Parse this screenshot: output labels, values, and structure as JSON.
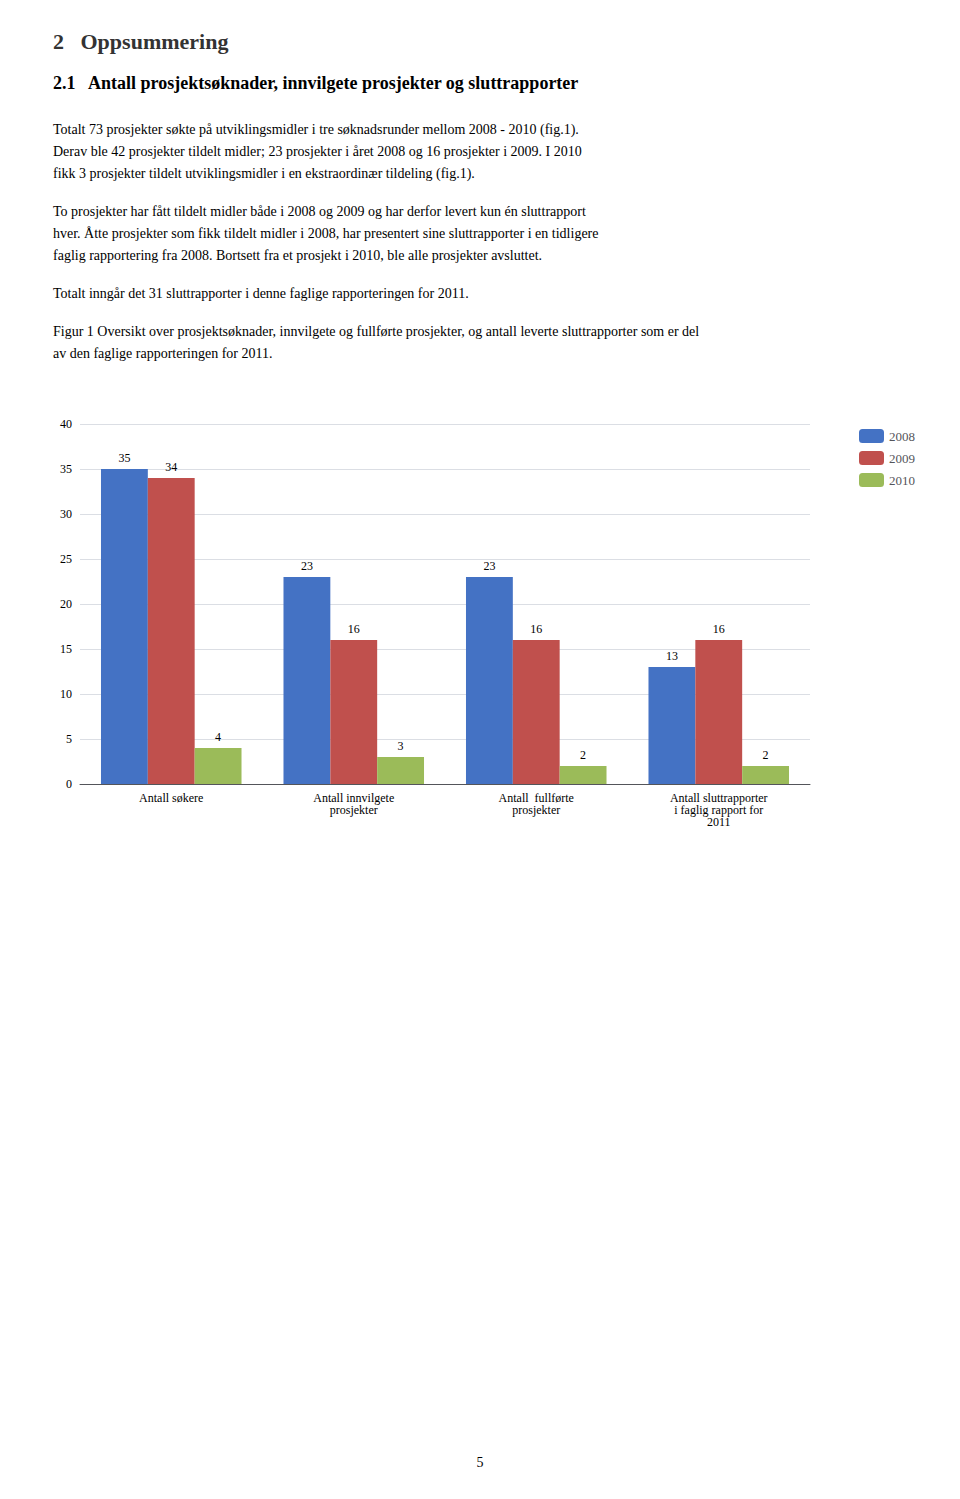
{
  "chart_data": {
    "type": "bar",
    "title": "2   Oppsummering",
    "subtitle": "2.1   Antall prosjektsøknader, innvilgete prosjekter og sluttrapporter",
    "annotations": [
      [
        "Totalt 73 prosjekter søkte på utviklingsmidler i tre søknadsrunder mellom 2008 - 2010 (fig.1).",
        "Derav ble 42 prosjekter tildelt midler; 23 prosjekter i året 2008 og 16 prosjekter i 2009. I 2010",
        "fikk 3 prosjekter tildelt utviklingsmidler i en ekstraordinær tildeling (fig.1)."
      ],
      [
        "To prosjekter har fått tildelt midler både i 2008 og 2009 og har derfor levert kun én sluttrapport",
        "hver. Åtte prosjekter som fikk tildelt midler i 2008, har presentert sine sluttrapporter i en tidligere",
        "faglig rapportering fra 2008. Bortsett fra et prosjekt i 2010, ble alle prosjekter avsluttet."
      ],
      [
        "Totalt inngår det 31 sluttrapporter i denne faglige rapporteringen for 2011."
      ],
      [
        "Figur 1 Oversikt over prosjektsøknader, innvilgete og fullførte prosjekter, og antall leverte sluttrapporter som er del",
        "av den faglige rapporteringen for 2011."
      ],
      [
        "5"
      ]
    ],
    "categories": [
      "Antall søkere",
      "Antall innvilgete\nprosjekter",
      "Antall  fullførte\nprosjekter",
      "Antall sluttrapporter\ni faglig rapport for\n2011"
    ],
    "series": [
      {
        "name": "2008",
        "color": "#4472C4",
        "values": [
          35,
          23,
          23,
          13
        ]
      },
      {
        "name": "2009",
        "color": "#C0504D",
        "values": [
          34,
          16,
          16,
          16
        ]
      },
      {
        "name": "2010",
        "color": "#9BBB59",
        "values": [
          4,
          3,
          2,
          2
        ]
      }
    ],
    "ylim": [
      0,
      40
    ],
    "yticks": [
      0,
      5,
      10,
      15,
      20,
      25,
      30,
      35,
      40
    ],
    "grid": true,
    "legend": "right",
    "data_labels": true
  }
}
